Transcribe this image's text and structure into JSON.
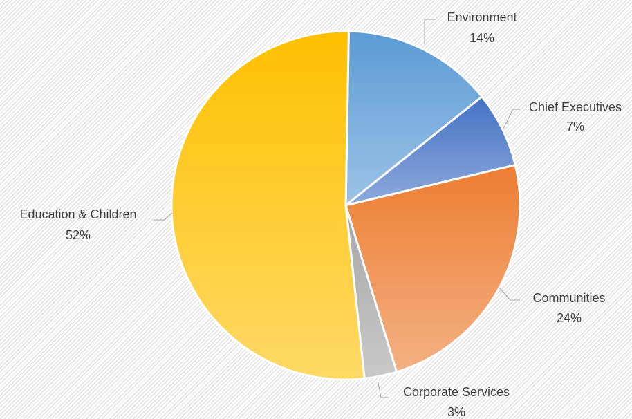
{
  "chart_data": {
    "type": "pie",
    "title": "",
    "slices": [
      {
        "label": "Environment",
        "value": 14,
        "value_label": "14%",
        "color_top": "#5b9bd5",
        "color_bottom": "#9dc3e6"
      },
      {
        "label": "Chief Executives",
        "value": 7,
        "value_label": "7%",
        "color_top": "#4472c4",
        "color_bottom": "#8faadc"
      },
      {
        "label": "Communities",
        "value": 24,
        "value_label": "24%",
        "color_top": "#ed7d31",
        "color_bottom": "#f4b183"
      },
      {
        "label": "Corporate Services",
        "value": 3,
        "value_label": "3%",
        "color_top": "#a5a5a5",
        "color_bottom": "#c9c9c9"
      },
      {
        "label": "Education & Children",
        "value": 52,
        "value_label": "52%",
        "color_top": "#ffc000",
        "color_bottom": "#ffd966"
      }
    ],
    "start_angle_deg": 1,
    "direction": "clockwise",
    "legend": "none",
    "data_labels": "outside with leader lines"
  }
}
